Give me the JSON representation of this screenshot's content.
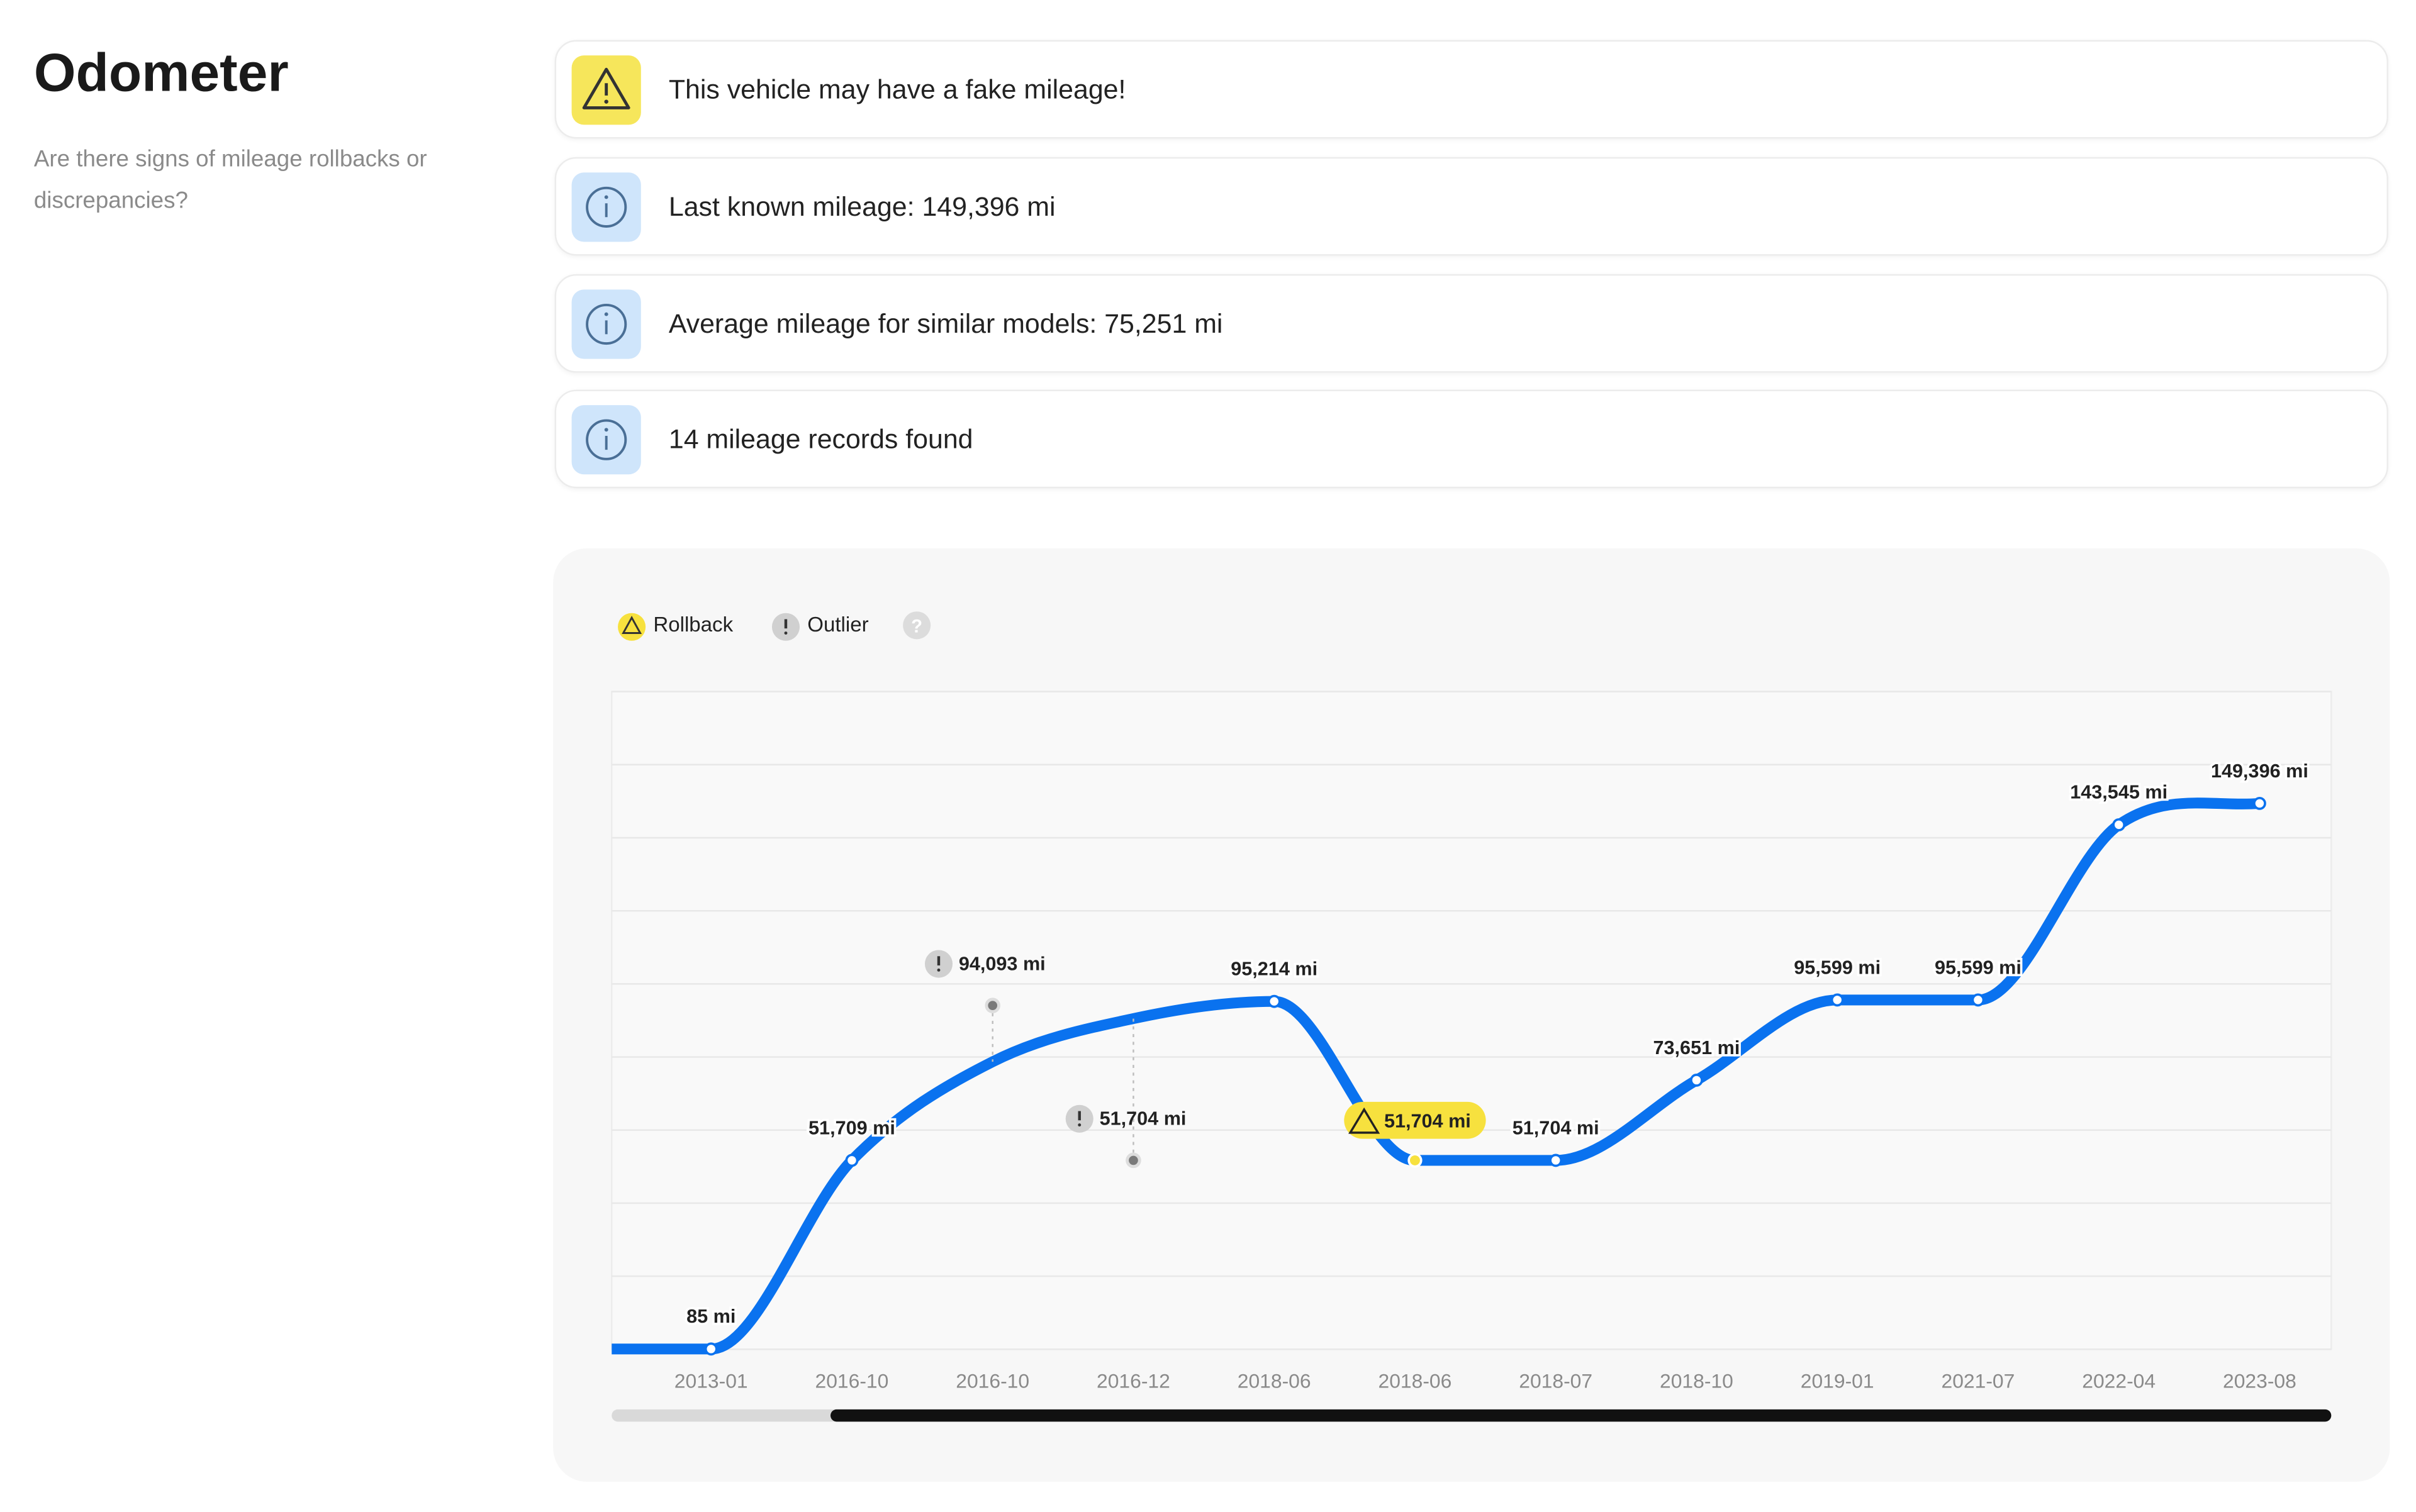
{
  "header": {
    "title": "Odometer",
    "subtitle": "Are there signs of mileage rollbacks or discrepancies?"
  },
  "alerts": [
    {
      "text": "This vehicle may have a fake mileage!"
    },
    {
      "text": "Last known mileage: 149,396 mi"
    },
    {
      "text": "Average mileage for similar models: 75,251 mi"
    },
    {
      "text": "14 mileage records found"
    }
  ],
  "legend_help": "?",
  "chart_data": {
    "type": "line",
    "categories": [
      "2013-01",
      "2016-10",
      "2016-10",
      "2016-12",
      "2018-06",
      "2018-06",
      "2018-07",
      "2018-10",
      "2019-01",
      "2021-07",
      "2022-04",
      "2023-08"
    ],
    "series": [
      {
        "color": "#0a72ef",
        "values": [
          85,
          51709,
          78700,
          90500,
          95214,
          51704,
          51704,
          73651,
          95599,
          95599,
          143545,
          149396
        ],
        "value_labels": [
          "85 mi",
          "51,709 mi",
          null,
          null,
          "95,214 mi",
          null,
          "51,704 mi",
          "73,651 mi",
          "95,599 mi",
          "95,599 mi",
          "143,545 mi",
          "149,396 mi"
        ]
      },
      {
        "name": "Rollback",
        "color": "#f7e13e",
        "values": [
          null,
          null,
          null,
          null,
          null,
          51704,
          null,
          null,
          null,
          null,
          null,
          null
        ],
        "value_labels": [
          null,
          null,
          null,
          null,
          null,
          "51,704 mi",
          null,
          null,
          null,
          null,
          null,
          null
        ]
      },
      {
        "name": "Outlier",
        "color": "#7a7a7a",
        "values": [
          null,
          null,
          94093,
          51704,
          null,
          null,
          null,
          null,
          null,
          null,
          null,
          null
        ],
        "value_labels": [
          null,
          null,
          "94,093 mi",
          "51,704 mi",
          null,
          null,
          null,
          null,
          null,
          null,
          null,
          null
        ]
      }
    ],
    "ylim": [
      0,
      180000
    ],
    "yticks": [
      0,
      20000,
      40000,
      60000,
      80000,
      100000,
      120000,
      140000,
      160000,
      180000
    ],
    "grid": true
  }
}
